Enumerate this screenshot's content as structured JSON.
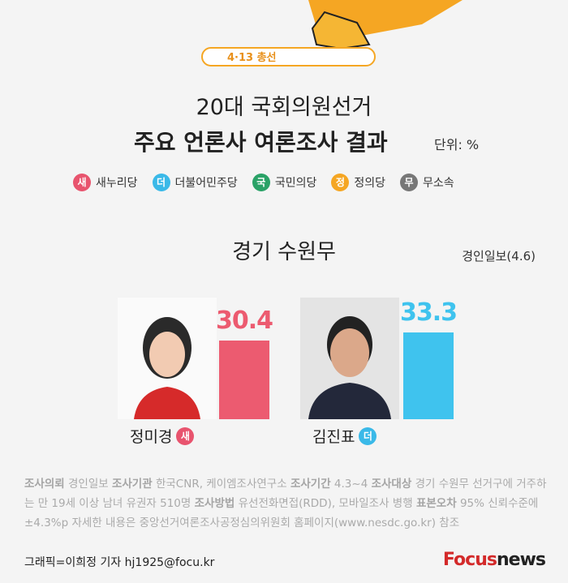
{
  "header": {
    "badge": "4·13 총선",
    "title_line1": "20대 국회의원선거",
    "title_line2": "주요 언론사 여론조사 결과",
    "unit": "단위: %"
  },
  "legend": [
    {
      "icon": "새",
      "label": "새누리당",
      "color": "#e8546e"
    },
    {
      "icon": "더",
      "label": "더불어민주당",
      "color": "#3ab9e8"
    },
    {
      "icon": "국",
      "label": "국민의당",
      "color": "#2aa267"
    },
    {
      "icon": "정",
      "label": "정의당",
      "color": "#f5a623"
    },
    {
      "icon": "무",
      "label": "무소속",
      "color": "#777777"
    }
  ],
  "chart_data": {
    "type": "bar",
    "title": "경기 수원무",
    "subtitle": "경인일보(4.6)",
    "categories": [
      "정미경",
      "김진표"
    ],
    "party_icons": [
      "새",
      "더"
    ],
    "values": [
      30.4,
      33.3
    ],
    "colors": [
      "#ec5b70",
      "#3fc3ee"
    ]
  },
  "footer": {
    "notes": [
      {
        "label": "조사의뢰",
        "text": "경인일보"
      },
      {
        "label": "조사기관",
        "text": "한국CNR, 케이엠조사연구소"
      },
      {
        "label": "조사기간",
        "text": "4.3~4"
      },
      {
        "label": "조사대상",
        "text": "경기 수원무 선거구에 거주하는 만 19세 이상 남녀 유권자 510명"
      },
      {
        "label": "조사방법",
        "text": "유선전화면접(RDD), 모바일조사 병행"
      },
      {
        "label": "표본오차",
        "text": "95% 신뢰수준에 ±4.3%p"
      }
    ],
    "detail": "자세한 내용은 중앙선거여론조사공정심의위원회 홈페이지(www.nesdc.go.kr) 참조",
    "credit": "그래픽=이희정 기자 hj1925@focu.kr",
    "logo_main": "Focus",
    "logo_sub": "news"
  }
}
